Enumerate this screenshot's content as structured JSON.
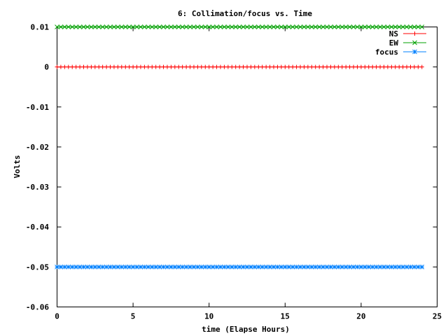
{
  "chart_data": {
    "type": "line",
    "title": "6: Collimation/focus vs. Time",
    "xlabel": "time (Elapse Hours)",
    "ylabel": "Volts",
    "xlim": [
      0,
      25
    ],
    "ylim": [
      -0.06,
      0.01
    ],
    "x_ticks": [
      "0",
      "5",
      "10",
      "15",
      "20",
      "25"
    ],
    "y_ticks": [
      "0.01",
      "0",
      "-0.01",
      "-0.02",
      "-0.03",
      "-0.04",
      "-0.05",
      "-0.06"
    ],
    "grid": false,
    "legend_position": "top-right",
    "markers_per_series": 97,
    "series": [
      {
        "name": "NS",
        "color": "#ff0000",
        "marker": "plus",
        "y": 0,
        "x_range": [
          0,
          24
        ]
      },
      {
        "name": "EW",
        "color": "#00a000",
        "marker": "cross",
        "y": 0.01,
        "x_range": [
          0,
          24
        ]
      },
      {
        "name": "focus",
        "color": "#0080ff",
        "marker": "star",
        "y": -0.05,
        "x_range": [
          0,
          24
        ]
      }
    ]
  }
}
